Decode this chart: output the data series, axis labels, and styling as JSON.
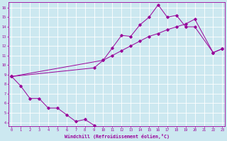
{
  "xlabel": "Windchill (Refroidissement éolien,°C)",
  "background_color": "#cce8f0",
  "grid_color": "#ffffff",
  "line_color": "#990099",
  "line1_x": [
    0,
    1,
    2,
    3,
    4,
    5,
    6,
    7,
    8,
    9
  ],
  "line1_y": [
    8.8,
    7.8,
    6.5,
    6.5,
    5.5,
    5.5,
    4.8,
    4.1,
    4.3,
    3.7
  ],
  "line2_x": [
    0,
    9,
    10,
    11,
    12,
    13,
    14,
    15,
    16,
    17,
    18,
    19,
    20,
    22,
    23
  ],
  "line2_y": [
    8.8,
    9.7,
    10.5,
    11.8,
    13.1,
    13.0,
    14.2,
    15.0,
    16.3,
    15.0,
    15.2,
    14.0,
    14.0,
    11.3,
    11.7
  ],
  "line3_x": [
    0,
    10,
    11,
    12,
    13,
    14,
    15,
    16,
    17,
    18,
    19,
    20,
    22,
    23
  ],
  "line3_y": [
    8.8,
    10.5,
    11.0,
    11.5,
    12.0,
    12.5,
    13.0,
    13.3,
    13.7,
    14.0,
    14.3,
    14.8,
    11.3,
    11.7
  ],
  "xlim": [
    0,
    23
  ],
  "ylim": [
    4,
    16
  ],
  "xticks": [
    0,
    1,
    2,
    3,
    4,
    5,
    6,
    7,
    8,
    9,
    10,
    11,
    12,
    13,
    14,
    15,
    16,
    17,
    18,
    19,
    20,
    21,
    22,
    23
  ],
  "yticks": [
    4,
    5,
    6,
    7,
    8,
    9,
    10,
    11,
    12,
    13,
    14,
    15,
    16
  ]
}
